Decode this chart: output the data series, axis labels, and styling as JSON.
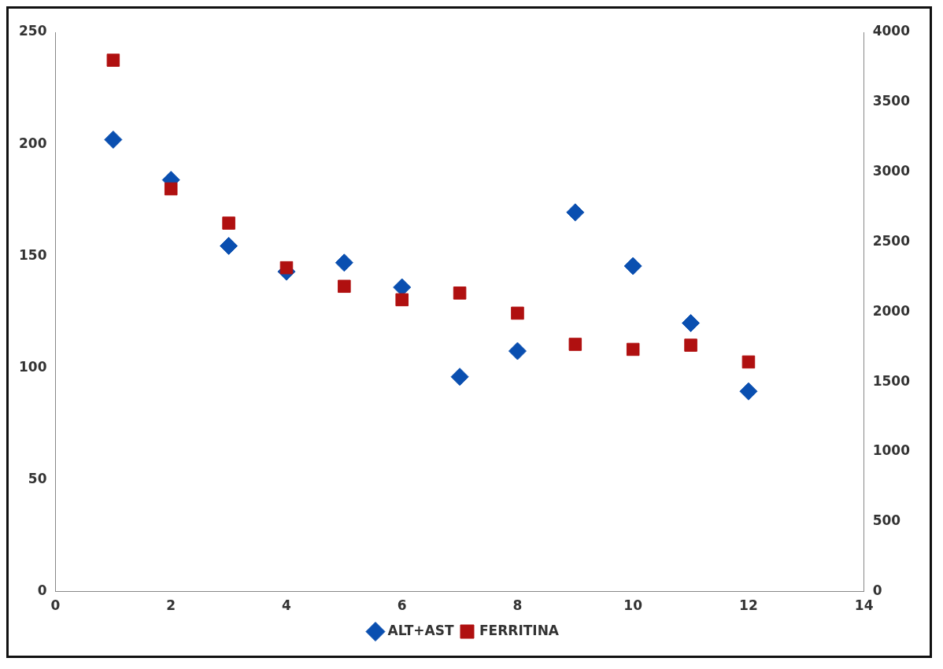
{
  "chart_data": {
    "type": "scatter",
    "x": [
      1,
      2,
      3,
      4,
      5,
      6,
      7,
      8,
      9,
      10,
      11,
      12
    ],
    "series": [
      {
        "name": "ALT+AST",
        "color": "#0a4fb0",
        "marker": "diamond",
        "values": [
          202,
          184,
          154.5,
          143,
          147,
          136,
          96,
          107.5,
          169.5,
          145.5,
          120,
          89.5
        ]
      },
      {
        "name": "FERRITINA",
        "color": "#b01010",
        "marker": "square",
        "axis": "y2",
        "values": [
          3800,
          2880,
          2635,
          2316,
          2183,
          2087,
          2135,
          1991,
          1768,
          1732,
          1762,
          1642
        ]
      }
    ],
    "xlim": [
      0,
      14
    ],
    "xticks": [
      0,
      2,
      4,
      6,
      8,
      10,
      12,
      14
    ],
    "ylim": [
      0,
      250
    ],
    "yticks": [
      0,
      50,
      100,
      150,
      200,
      250
    ],
    "y2lim": [
      0,
      4000
    ],
    "y2ticks": [
      0,
      500,
      1000,
      1500,
      2000,
      2500,
      3000,
      3500,
      4000
    ],
    "grid": false,
    "legend": "bottom"
  }
}
